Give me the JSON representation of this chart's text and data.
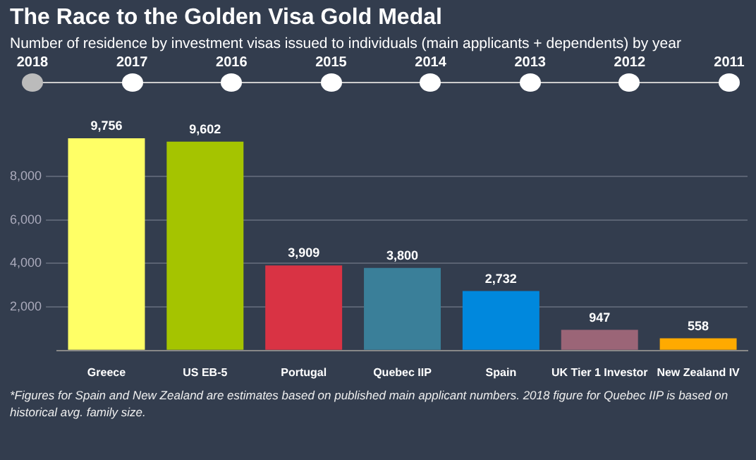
{
  "chart_data": {
    "type": "bar",
    "title": "The Race to the Golden Visa Gold Medal",
    "subtitle": "Number of residence by investment visas issued to individuals (main applicants + dependents) by year",
    "categories": [
      "Greece",
      "US EB-5",
      "Portugal",
      "Quebec IIP",
      "Spain",
      "UK Tier 1 Investor",
      "New Zealand IV"
    ],
    "values": [
      9756,
      9602,
      3909,
      3800,
      2732,
      947,
      558
    ],
    "colors": [
      "#ffff66",
      "#a5c400",
      "#d93344",
      "#3a7f99",
      "#0088dd",
      "#9b6577",
      "#ffaa00"
    ],
    "value_labels": [
      "9,756",
      "9,602",
      "3,909",
      "3,800",
      "2,732",
      "947",
      "558"
    ],
    "ylim": [
      0,
      9756
    ],
    "yticks": [
      {
        "value": 0,
        "label": null
      },
      {
        "value": 2000,
        "label": "2,000"
      },
      {
        "value": 4000,
        "label": "4,000"
      },
      {
        "value": 6000,
        "label": "6,000"
      },
      {
        "value": 8000,
        "label": "8,000"
      }
    ],
    "grid": "y",
    "legend": false,
    "annotations": [
      "2018",
      "2017",
      "2016",
      "2015",
      "2014",
      "2013",
      "2012",
      "2011",
      "*Figures for Spain and New Zealand are estimates based on published main applicant numbers. 2018 figure for Quebec IIP is based on historical avg. family size."
    ]
  }
}
